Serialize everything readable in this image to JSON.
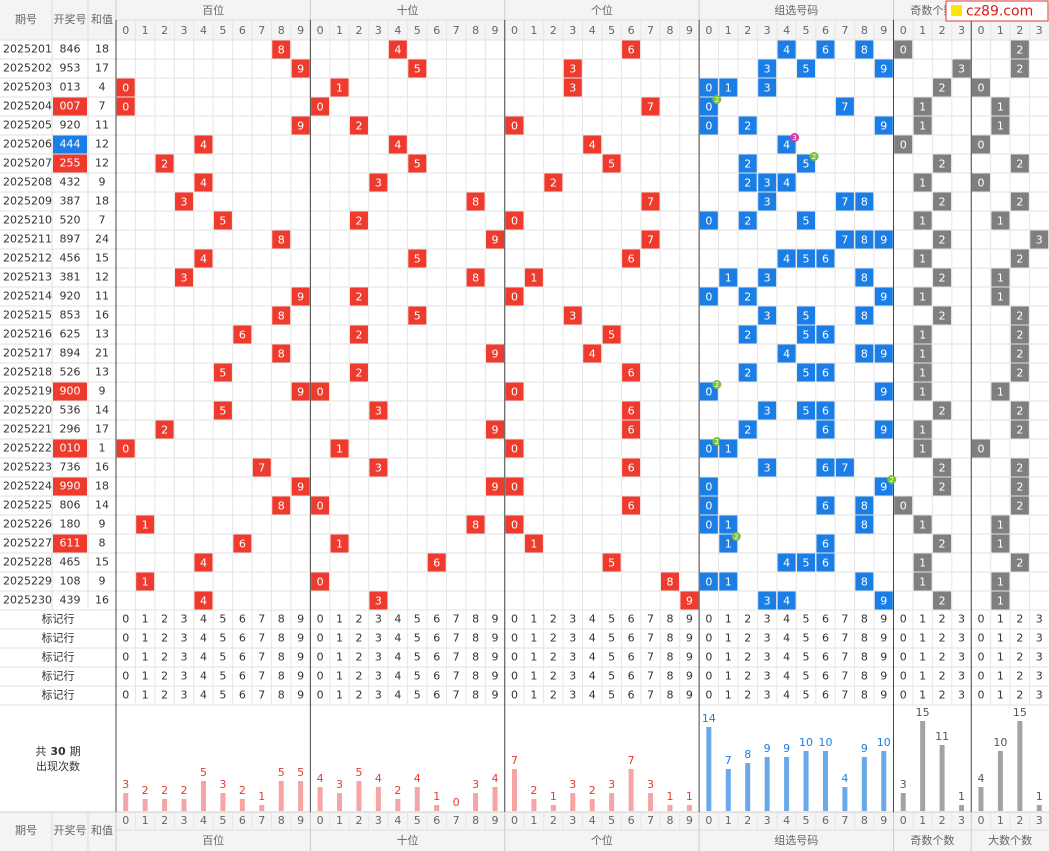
{
  "headers": {
    "period": "期号",
    "number": "开奖号",
    "sum": "和值"
  },
  "digits": [
    0,
    1,
    2,
    3,
    4,
    5,
    6,
    7,
    8,
    9
  ],
  "count_digits": [
    0,
    1,
    2,
    3
  ],
  "groups": [
    {
      "title": "百位",
      "kind": "position",
      "position": 0,
      "cell_color": "#ef3b2d",
      "bar_color": "#f5a5a5",
      "count_color": "#e8392f",
      "counts": [
        3,
        2,
        2,
        2,
        5,
        3,
        2,
        1,
        5,
        5
      ]
    },
    {
      "title": "十位",
      "kind": "position",
      "position": 1,
      "cell_color": "#ef3b2d",
      "bar_color": "#f5a5a5",
      "count_color": "#e8392f",
      "counts": [
        4,
        3,
        5,
        4,
        2,
        4,
        1,
        0,
        3,
        4
      ]
    },
    {
      "title": "个位",
      "kind": "position",
      "position": 2,
      "cell_color": "#ef3b2d",
      "bar_color": "#f5a5a5",
      "count_color": "#e8392f",
      "counts": [
        7,
        2,
        1,
        3,
        2,
        3,
        7,
        3,
        1,
        1
      ]
    },
    {
      "title": "组选号码",
      "kind": "group",
      "cell_color": "#1a7ee6",
      "bar_color": "#6aa8ea",
      "count_color": "#1a7ee6",
      "counts": [
        14,
        7,
        8,
        9,
        9,
        10,
        10,
        4,
        9,
        10
      ]
    },
    {
      "title": "奇数个数",
      "kind": "odd",
      "cell_color": "#7f7f7f",
      "bar_color": "#a3a3a3",
      "count_color": "#555555",
      "counts": [
        3,
        15,
        11,
        1
      ]
    },
    {
      "title": "大数个数",
      "kind": "big",
      "cell_color": "#7f7f7f",
      "bar_color": "#a3a3a3",
      "count_color": "#555555",
      "counts": [
        4,
        10,
        15,
        1
      ]
    }
  ],
  "rows": [
    {
      "period": "2025201",
      "number": "846",
      "sum": 18,
      "digits": [
        8,
        4,
        6
      ],
      "odd": 0,
      "big": 2
    },
    {
      "period": "2025202",
      "number": "953",
      "sum": 17,
      "digits": [
        9,
        5,
        3
      ],
      "odd": 3,
      "big": 2
    },
    {
      "period": "2025203",
      "number": "013",
      "sum": 4,
      "digits": [
        0,
        1,
        3
      ],
      "odd": 2,
      "big": 0
    },
    {
      "period": "2025204",
      "number": "007",
      "sum": 7,
      "digits": [
        0,
        0,
        7
      ],
      "odd": 1,
      "big": 1,
      "number_color": "#ef3b2d",
      "repeat": {
        "digit": 0,
        "count": 2,
        "color": "#7cc13a"
      }
    },
    {
      "period": "2025205",
      "number": "920",
      "sum": 11,
      "digits": [
        9,
        2,
        0
      ],
      "odd": 1,
      "big": 1
    },
    {
      "period": "2025206",
      "number": "444",
      "sum": 12,
      "digits": [
        4,
        4,
        4
      ],
      "odd": 0,
      "big": 0,
      "number_color": "#1a7ee6",
      "repeat": {
        "digit": 4,
        "count": 3,
        "color": "#d63aa8"
      }
    },
    {
      "period": "2025207",
      "number": "255",
      "sum": 12,
      "digits": [
        2,
        5,
        5
      ],
      "odd": 2,
      "big": 2,
      "number_color": "#ef3b2d",
      "repeat": {
        "digit": 5,
        "count": 2,
        "color": "#7cc13a"
      }
    },
    {
      "period": "2025208",
      "number": "432",
      "sum": 9,
      "digits": [
        4,
        3,
        2
      ],
      "odd": 1,
      "big": 0
    },
    {
      "period": "2025209",
      "number": "387",
      "sum": 18,
      "digits": [
        3,
        8,
        7
      ],
      "odd": 2,
      "big": 2
    },
    {
      "period": "2025210",
      "number": "520",
      "sum": 7,
      "digits": [
        5,
        2,
        0
      ],
      "odd": 1,
      "big": 1
    },
    {
      "period": "2025211",
      "number": "897",
      "sum": 24,
      "digits": [
        8,
        9,
        7
      ],
      "odd": 2,
      "big": 3
    },
    {
      "period": "2025212",
      "number": "456",
      "sum": 15,
      "digits": [
        4,
        5,
        6
      ],
      "odd": 1,
      "big": 2
    },
    {
      "period": "2025213",
      "number": "381",
      "sum": 12,
      "digits": [
        3,
        8,
        1
      ],
      "odd": 2,
      "big": 1
    },
    {
      "period": "2025214",
      "number": "920",
      "sum": 11,
      "digits": [
        9,
        2,
        0
      ],
      "odd": 1,
      "big": 1
    },
    {
      "period": "2025215",
      "number": "853",
      "sum": 16,
      "digits": [
        8,
        5,
        3
      ],
      "odd": 2,
      "big": 2
    },
    {
      "period": "2025216",
      "number": "625",
      "sum": 13,
      "digits": [
        6,
        2,
        5
      ],
      "odd": 1,
      "big": 2
    },
    {
      "period": "2025217",
      "number": "894",
      "sum": 21,
      "digits": [
        8,
        9,
        4
      ],
      "odd": 1,
      "big": 2
    },
    {
      "period": "2025218",
      "number": "526",
      "sum": 13,
      "digits": [
        5,
        2,
        6
      ],
      "odd": 1,
      "big": 2
    },
    {
      "period": "2025219",
      "number": "900",
      "sum": 9,
      "digits": [
        9,
        0,
        0
      ],
      "odd": 1,
      "big": 1,
      "number_color": "#ef3b2d",
      "repeat": {
        "digit": 0,
        "count": 2,
        "color": "#7cc13a"
      }
    },
    {
      "period": "2025220",
      "number": "536",
      "sum": 14,
      "digits": [
        5,
        3,
        6
      ],
      "odd": 2,
      "big": 2
    },
    {
      "period": "2025221",
      "number": "296",
      "sum": 17,
      "digits": [
        2,
        9,
        6
      ],
      "odd": 1,
      "big": 2
    },
    {
      "period": "2025222",
      "number": "010",
      "sum": 1,
      "digits": [
        0,
        1,
        0
      ],
      "odd": 1,
      "big": 0,
      "number_color": "#ef3b2d",
      "repeat": {
        "digit": 0,
        "count": 2,
        "color": "#7cc13a"
      }
    },
    {
      "period": "2025223",
      "number": "736",
      "sum": 16,
      "digits": [
        7,
        3,
        6
      ],
      "odd": 2,
      "big": 2
    },
    {
      "period": "2025224",
      "number": "990",
      "sum": 18,
      "digits": [
        9,
        9,
        0
      ],
      "odd": 2,
      "big": 2,
      "number_color": "#ef3b2d",
      "repeat": {
        "digit": 9,
        "count": 2,
        "color": "#7cc13a"
      }
    },
    {
      "period": "2025225",
      "number": "806",
      "sum": 14,
      "digits": [
        8,
        0,
        6
      ],
      "odd": 0,
      "big": 2
    },
    {
      "period": "2025226",
      "number": "180",
      "sum": 9,
      "digits": [
        1,
        8,
        0
      ],
      "odd": 1,
      "big": 1
    },
    {
      "period": "2025227",
      "number": "611",
      "sum": 8,
      "digits": [
        6,
        1,
        1
      ],
      "odd": 2,
      "big": 1,
      "number_color": "#ef3b2d",
      "repeat": {
        "digit": 1,
        "count": 2,
        "color": "#7cc13a"
      }
    },
    {
      "period": "2025228",
      "number": "465",
      "sum": 15,
      "digits": [
        4,
        6,
        5
      ],
      "odd": 1,
      "big": 2
    },
    {
      "period": "2025229",
      "number": "108",
      "sum": 9,
      "digits": [
        1,
        0,
        8
      ],
      "odd": 1,
      "big": 1
    },
    {
      "period": "2025230",
      "number": "439",
      "sum": 16,
      "digits": [
        4,
        3,
        9
      ],
      "odd": 2,
      "big": 1
    }
  ],
  "marker_label": "标记行",
  "stats": {
    "total_prefix": "共",
    "total": 30,
    "total_suffix": "期",
    "label": "出现次数"
  },
  "logo": "cz89.com"
}
